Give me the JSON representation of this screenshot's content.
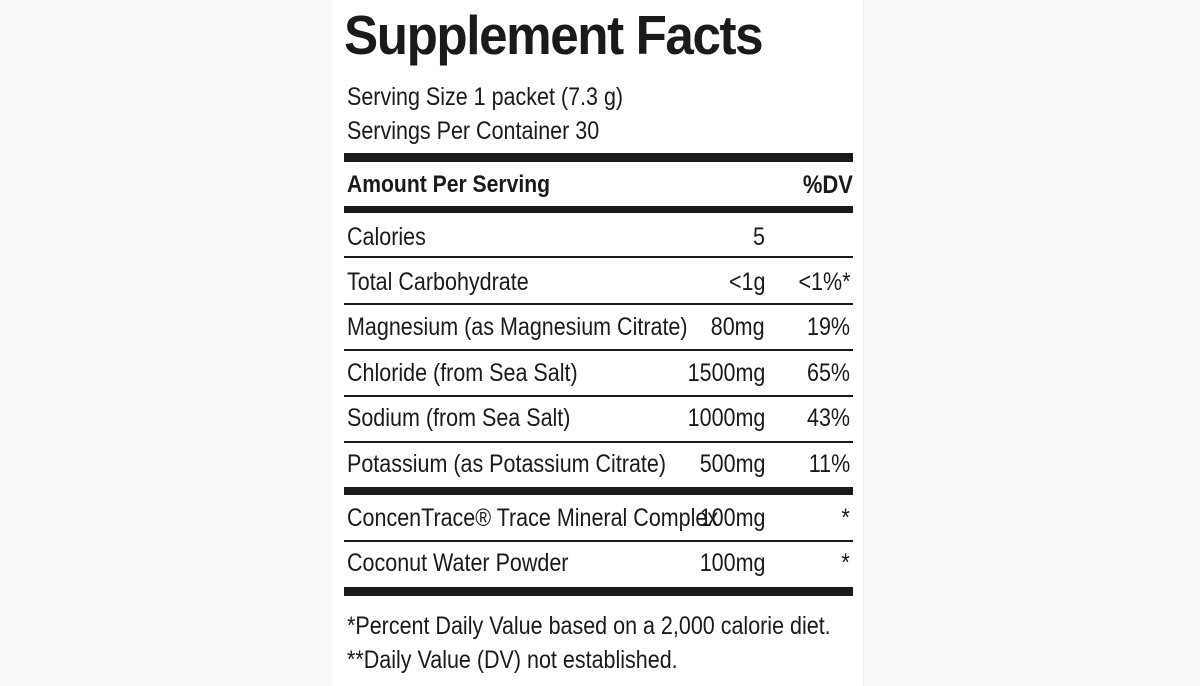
{
  "label": {
    "title": "Supplement Facts",
    "serving_size": "Serving Size 1 packet (7.3 g)",
    "servings_per_container": "Servings Per Container 30",
    "header": {
      "amount_per_serving": "Amount Per Serving",
      "dv": "%DV"
    },
    "nutrients": [
      {
        "name": "Calories",
        "amount": "5",
        "dv": ""
      },
      {
        "name": "Total Carbohydrate",
        "amount": "<1g",
        "dv": "<1%*"
      },
      {
        "name": "Magnesium (as Magnesium Citrate)",
        "amount": "80mg",
        "dv": "19%"
      },
      {
        "name": "Chloride (from Sea Salt)",
        "amount": "1500mg",
        "dv": "65%"
      },
      {
        "name": "Sodium (from Sea Salt)",
        "amount": "1000mg",
        "dv": "43%"
      },
      {
        "name": "Potassium (as Potassium Citrate)",
        "amount": "500mg",
        "dv": "11%"
      }
    ],
    "other_ingredients": [
      {
        "name": "ConcenTrace® Trace Mineral Complex",
        "amount": "100mg",
        "dv": "*"
      },
      {
        "name": "Coconut Water Powder",
        "amount": "100mg",
        "dv": "*"
      }
    ],
    "footnotes": [
      "*Percent Daily Value based on a 2,000 calorie diet.",
      "**Daily Value (DV) not established."
    ]
  },
  "colors": {
    "ink": "#1a1a1a",
    "background": "#ffffff"
  }
}
